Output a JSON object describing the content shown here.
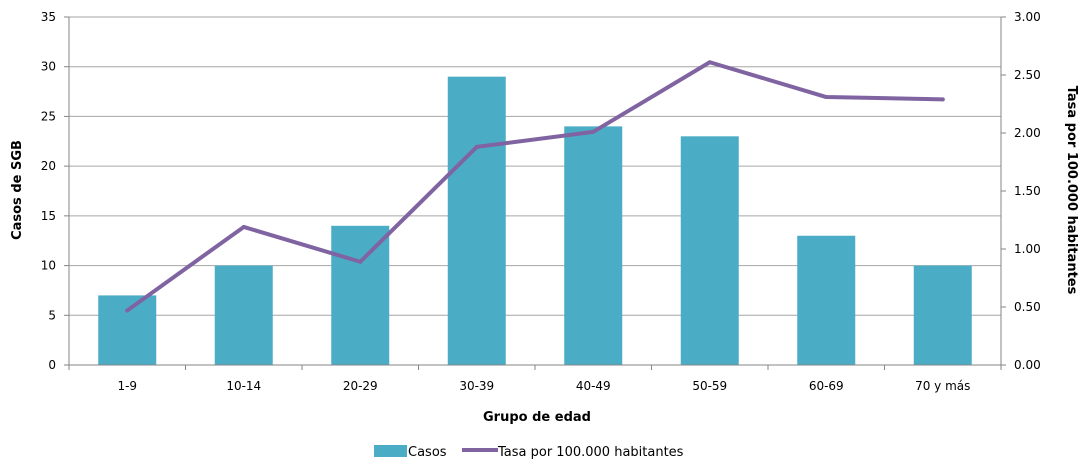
{
  "chart_data": {
    "type": "bar",
    "categories": [
      "1-9",
      "10-14",
      "20-29",
      "30-39",
      "40-49",
      "50-59",
      "60-69",
      "70 y más"
    ],
    "series": [
      {
        "name": "Casos",
        "type": "bar",
        "axis": "left",
        "color": "#4bacc6",
        "values": [
          7,
          10,
          14,
          29,
          24,
          23,
          13,
          10
        ]
      },
      {
        "name": "Tasa por 100.000 habitantes",
        "type": "line",
        "axis": "right",
        "color": "#8064a2",
        "values": [
          0.47,
          1.19,
          0.89,
          1.88,
          2.01,
          2.61,
          2.31,
          2.29
        ]
      }
    ],
    "xlabel": "Grupo de edad",
    "ylabel": "Casos de SGB",
    "y2label": "Tasa por 100.000 habitantes",
    "ylim": [
      0,
      35
    ],
    "yticks": [
      "0",
      "5",
      "10",
      "15",
      "20",
      "25",
      "30",
      "35"
    ],
    "y2lim": [
      0,
      3
    ],
    "y2ticks": [
      "0.00",
      "0.50",
      "1.00",
      "1.50",
      "2.00",
      "2.50",
      "3.00"
    ],
    "grid": true,
    "legend": "bottom"
  }
}
